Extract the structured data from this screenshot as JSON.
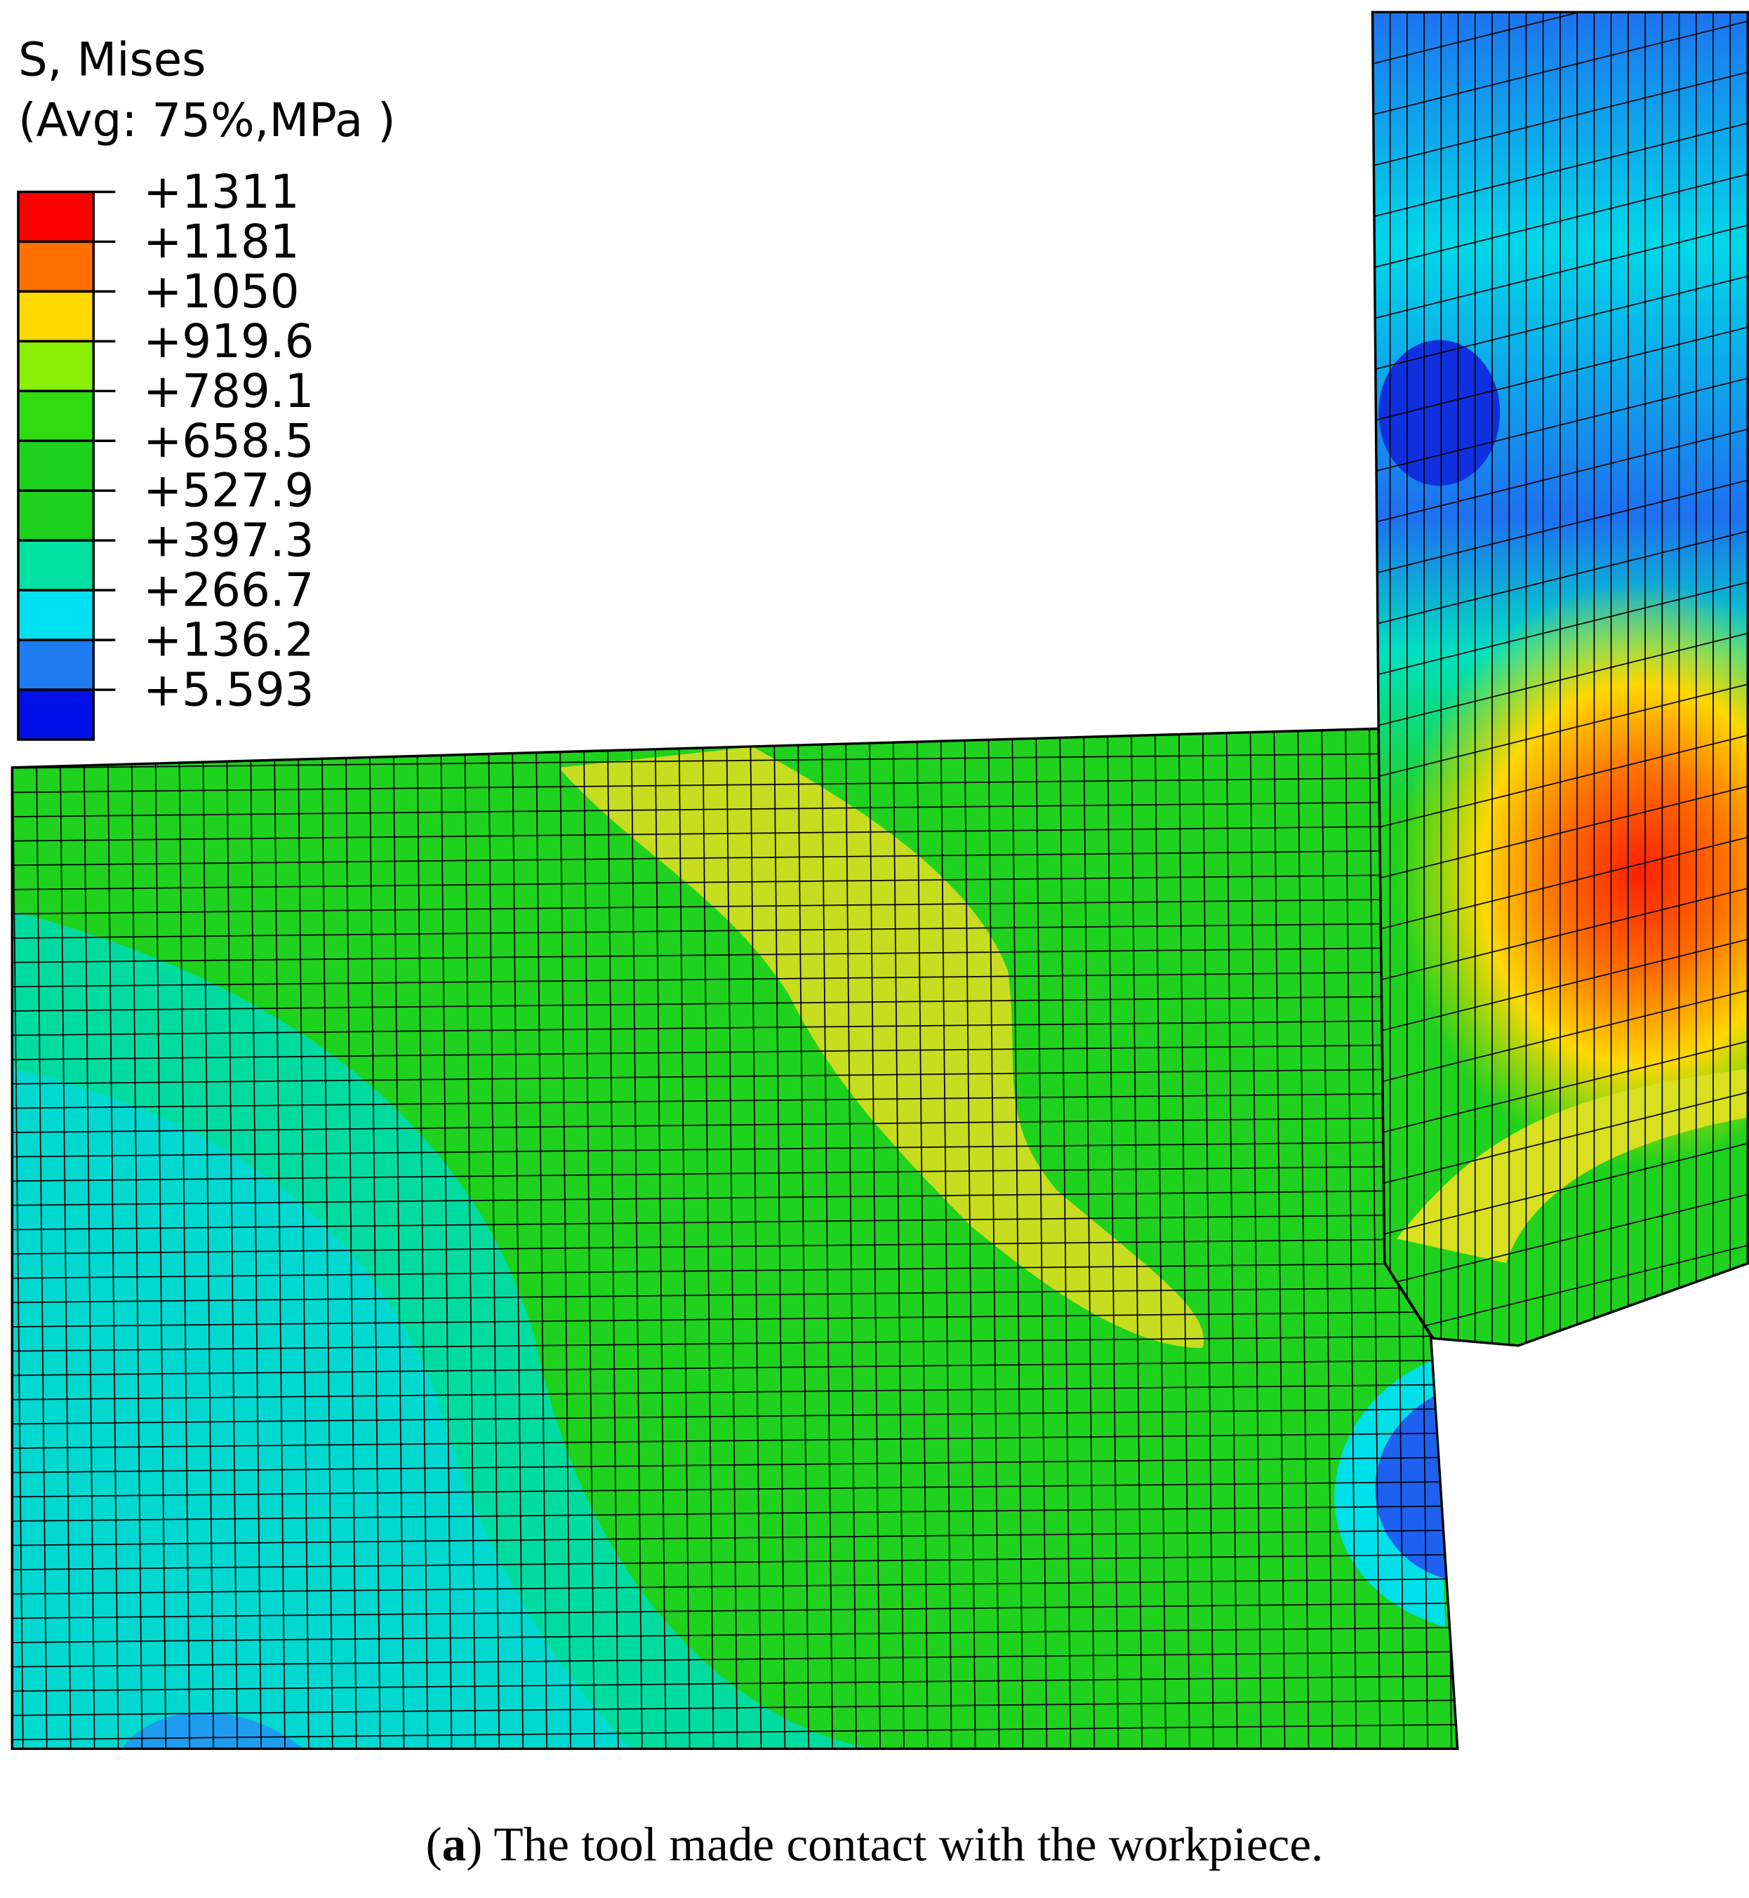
{
  "legend": {
    "title": "S, Mises",
    "subtitle": "(Avg: 75%,MPa )",
    "labels": [
      "+1311",
      "+1181",
      "+1050",
      "+919.6",
      "+789.1",
      "+658.5",
      "+527.9",
      "+397.3",
      "+266.7",
      "+136.2",
      "+5.593"
    ],
    "colors": [
      "#ff0000",
      "#ff7000",
      "#ffd800",
      "#88f000",
      "#30dc10",
      "#1ed21e",
      "#1ed21e",
      "#00e0a0",
      "#00e0f0",
      "#1e7cf0",
      "#0010e8"
    ]
  },
  "caption": {
    "open": "(",
    "label": "a",
    "text": ") The tool made contact with the workpiece."
  }
}
